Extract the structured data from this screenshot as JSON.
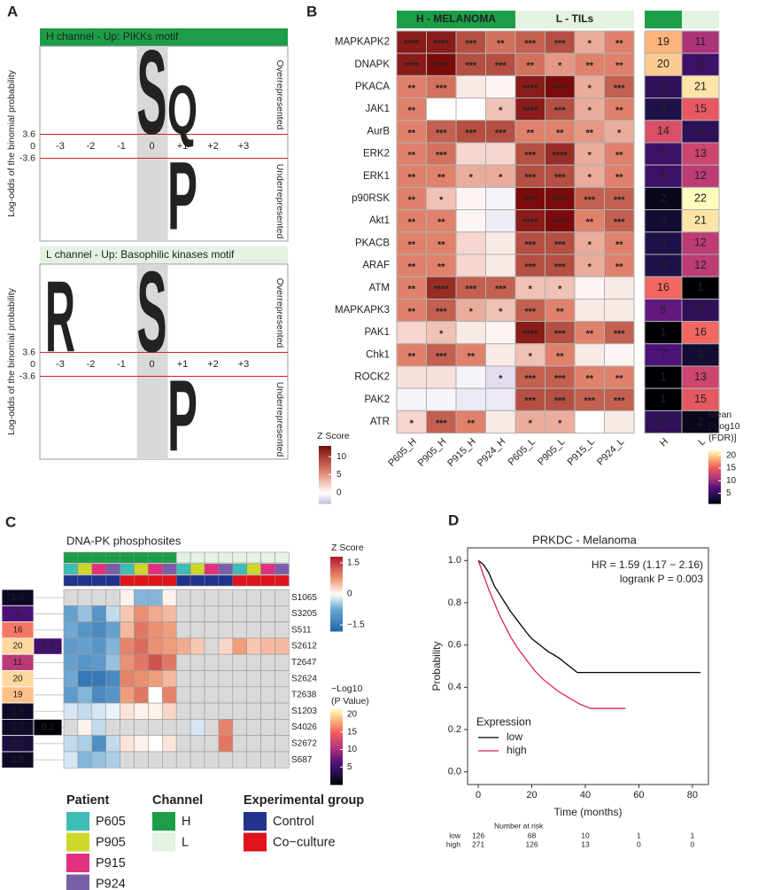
{
  "panel_a": {
    "label": "A",
    "y_label": "Log-odds of the binomial probability",
    "letter_colors": {
      "S": "#4b80b8",
      "Q": "#e8a020",
      "P": "#1f7a40",
      "R": "#13284f"
    },
    "logos": [
      {
        "title": "H channel - Up: PIKKs motif",
        "color": "#1b9e47",
        "text_color": "#ffffff",
        "positions": [
          "-3",
          "-2",
          "-1",
          "0",
          "+1",
          "+2",
          "+3"
        ],
        "yticks": [
          3.6,
          0,
          -3.6
        ],
        "over_label": "Overrepresented",
        "under_label": "Underrepresented",
        "letters_up": [
          null,
          null,
          null,
          {
            "letter": "S",
            "height": 26
          },
          {
            "letter": "Q",
            "height": 15
          },
          null,
          null
        ],
        "letters_down": [
          null,
          null,
          null,
          null,
          {
            "letter": "P",
            "height": 21
          },
          null,
          null
        ]
      },
      {
        "title": "L channel - Up: Basophilic kinases motif",
        "color": "#e3f2e1",
        "text_color": "#000000",
        "positions": [
          "-3",
          "-2",
          "-1",
          "0",
          "+1",
          "+2",
          "+3"
        ],
        "yticks": [
          3.6,
          0,
          -3.6
        ],
        "over_label": "Overrepresented",
        "under_label": "Underrepresented",
        "letters_up": [
          {
            "letter": "R",
            "height": 22
          },
          null,
          null,
          {
            "letter": "S",
            "height": 25
          },
          null,
          null,
          null
        ],
        "letters_down": [
          null,
          null,
          null,
          null,
          {
            "letter": "P",
            "height": 22
          },
          null,
          null
        ]
      }
    ]
  },
  "panel_b": {
    "label": "B",
    "groups": [
      {
        "name": "H - MELANOMA",
        "color": "#1b9e47",
        "text_color": "#ffffff"
      },
      {
        "name": "L - TILs",
        "color": "#e3f2e1",
        "text_color": "#000000"
      }
    ],
    "kinases": [
      "MAPKAPK2",
      "DNAPK",
      "PKACA",
      "JAK1",
      "AurB",
      "ERK2",
      "ERK1",
      "p90RSK",
      "Akt1",
      "PKACB",
      "ARAF",
      "ATM",
      "MAPKAPK3",
      "PAK1",
      "Chk1",
      "ROCK2",
      "PAK2",
      "ATR"
    ],
    "highlight": {
      "row": 1,
      "color": "#2b2a8c"
    },
    "samples": [
      "P605_H",
      "P905_H",
      "P915_H",
      "P924_H",
      "P605_L",
      "P905_L",
      "P915_L",
      "P924_L"
    ],
    "stars": [
      [
        "****",
        "****",
        "***",
        "**",
        "***",
        "***",
        "*",
        "**"
      ],
      [
        "****",
        "****",
        "***",
        "***",
        "**",
        "*",
        "**",
        "**"
      ],
      [
        "**",
        "***",
        null,
        null,
        "****",
        "****",
        "*",
        "***"
      ],
      [
        "**",
        null,
        null,
        "*",
        "****",
        "***",
        "*",
        "**"
      ],
      [
        "**",
        "***",
        "***",
        "***",
        "**",
        "**",
        "**",
        "*"
      ],
      [
        "**",
        "***",
        null,
        null,
        "***",
        "****",
        "*",
        "**"
      ],
      [
        "**",
        "**",
        "*",
        "*",
        "***",
        "***",
        "*",
        "**"
      ],
      [
        "**",
        "*",
        null,
        null,
        "****",
        "****",
        "***",
        "***"
      ],
      [
        "**",
        "**",
        null,
        null,
        "****",
        "****",
        "**",
        "***"
      ],
      [
        "**",
        "**",
        null,
        null,
        "***",
        "***",
        "*",
        "**"
      ],
      [
        "**",
        "**",
        null,
        null,
        "***",
        "***",
        "*",
        "**"
      ],
      [
        "**",
        "****",
        "***",
        "***",
        "*",
        "*",
        null,
        null
      ],
      [
        "**",
        "***",
        "*",
        "*",
        "***",
        "**",
        null,
        null
      ],
      [
        null,
        "*",
        null,
        null,
        "****",
        "***",
        "**",
        "***"
      ],
      [
        "**",
        "***",
        "**",
        null,
        "*",
        "**",
        null,
        null
      ],
      [
        null,
        null,
        null,
        "*",
        "***",
        "***",
        "**",
        "**"
      ],
      [
        null,
        null,
        null,
        null,
        "***",
        "***",
        "***",
        "***"
      ],
      [
        "*",
        "***",
        "**",
        null,
        "*",
        "*",
        null,
        null
      ]
    ],
    "z_scores": [
      [
        12,
        12,
        9,
        7,
        8,
        9,
        4,
        6
      ],
      [
        12,
        13,
        9,
        9,
        7,
        5,
        6,
        6
      ],
      [
        6,
        7,
        1,
        0.5,
        12,
        13,
        4,
        8
      ],
      [
        6,
        0,
        0,
        3,
        12,
        9,
        4,
        6
      ],
      [
        6,
        8,
        9,
        9,
        6,
        6,
        5,
        4
      ],
      [
        6,
        7,
        2,
        2,
        9,
        11,
        4,
        6
      ],
      [
        6,
        6,
        4,
        4,
        9,
        9,
        4,
        6
      ],
      [
        6,
        3,
        0.5,
        -0.5,
        13,
        13,
        8,
        8
      ],
      [
        6,
        6,
        0.5,
        -0.8,
        12,
        13,
        6,
        8
      ],
      [
        6,
        6,
        2,
        1,
        9,
        9,
        4,
        6
      ],
      [
        6,
        6,
        2,
        1,
        9,
        9,
        4,
        6
      ],
      [
        6,
        11,
        8,
        8,
        3,
        3,
        0.5,
        1
      ],
      [
        6,
        8,
        4,
        3,
        8,
        6,
        1,
        1
      ],
      [
        2,
        3,
        1,
        0.5,
        12,
        9,
        6,
        8
      ],
      [
        6,
        8,
        6,
        1,
        3,
        6,
        1,
        0.5
      ],
      [
        1.5,
        1.5,
        -0.5,
        -1.5,
        8,
        8,
        6,
        6
      ],
      [
        -0.5,
        -0.5,
        -1,
        -1,
        9,
        9,
        8,
        8
      ],
      [
        2,
        8,
        6,
        1,
        4,
        4,
        0,
        1
      ]
    ],
    "z_legend": {
      "title": "Z Score",
      "lim": [
        -3,
        13
      ],
      "ticks": [
        0,
        5,
        10
      ]
    },
    "fdr": {
      "columns": [
        "H",
        "L"
      ],
      "values": [
        [
          19,
          11
        ],
        [
          20,
          6
        ],
        [
          5,
          21
        ],
        [
          4,
          15
        ],
        [
          14,
          5
        ],
        [
          6,
          13
        ],
        [
          6,
          12
        ],
        [
          2,
          22
        ],
        [
          3,
          21
        ],
        [
          4,
          12
        ],
        [
          4,
          12
        ],
        [
          16,
          1
        ],
        [
          8,
          5
        ],
        [
          1,
          16
        ],
        [
          7,
          3
        ],
        [
          1,
          13
        ],
        [
          1,
          15
        ],
        [
          5,
          2
        ]
      ],
      "legend": {
        "title": [
          "Mean",
          "[-Log10",
          "(FDR)]"
        ],
        "lim": [
          1,
          22
        ],
        "ticks": [
          5,
          10,
          15,
          20
        ]
      }
    }
  },
  "panel_c": {
    "label": "C",
    "title": "DNA-PK phosphosites",
    "sites": [
      "S1065",
      "S3205",
      "S511",
      "S2612",
      "T2647",
      "S2624",
      "T2638",
      "S1203",
      "S4026",
      "S2672",
      "S687"
    ],
    "pvalues": [
      [
        1.4,
        null
      ],
      [
        6,
        null
      ],
      [
        16,
        null
      ],
      [
        20,
        5.4
      ],
      [
        11,
        null
      ],
      [
        20,
        null
      ],
      [
        19,
        null
      ],
      [
        1.6,
        null
      ],
      [
        1.7,
        0.2
      ],
      [
        2.5,
        null
      ],
      [
        1.5,
        null
      ]
    ],
    "columns": [
      {
        "patient": 0,
        "channel": 0,
        "group": 0
      },
      {
        "patient": 1,
        "channel": 0,
        "group": 0
      },
      {
        "patient": 2,
        "channel": 0,
        "group": 0
      },
      {
        "patient": 3,
        "channel": 0,
        "group": 0
      },
      {
        "patient": 0,
        "channel": 0,
        "group": 1
      },
      {
        "patient": 1,
        "channel": 0,
        "group": 1
      },
      {
        "patient": 2,
        "channel": 0,
        "group": 1
      },
      {
        "patient": 3,
        "channel": 0,
        "group": 1
      },
      {
        "patient": 0,
        "channel": 1,
        "group": 0
      },
      {
        "patient": 1,
        "channel": 1,
        "group": 0
      },
      {
        "patient": 2,
        "channel": 1,
        "group": 0
      },
      {
        "patient": 3,
        "channel": 1,
        "group": 0
      },
      {
        "patient": 0,
        "channel": 1,
        "group": 1
      },
      {
        "patient": 1,
        "channel": 1,
        "group": 1
      },
      {
        "patient": 2,
        "channel": 1,
        "group": 1
      },
      {
        "patient": 3,
        "channel": 1,
        "group": 1
      }
    ],
    "z_scores": [
      [
        null,
        null,
        null,
        null,
        0.1,
        -0.6,
        -0.6,
        0.1,
        null,
        null,
        null,
        null,
        null,
        null,
        null,
        null
      ],
      [
        -0.8,
        -0.5,
        -1.0,
        -0.3,
        0.4,
        0.8,
        0.6,
        0.5,
        null,
        null,
        null,
        null,
        null,
        null,
        null,
        null
      ],
      [
        -0.7,
        -1.0,
        -1.2,
        -0.8,
        0.5,
        1.0,
        0.8,
        0.7,
        null,
        null,
        null,
        null,
        null,
        null,
        null,
        null
      ],
      [
        -0.9,
        -0.8,
        -1.0,
        -0.6,
        0.9,
        1.1,
        0.8,
        0.7,
        0.6,
        0.4,
        null,
        0.3,
        0.7,
        0.4,
        0.5,
        0.5
      ],
      [
        -0.8,
        -1.0,
        -0.9,
        -0.5,
        0.8,
        1.0,
        1.3,
        1.0,
        null,
        null,
        null,
        null,
        null,
        null,
        null,
        null
      ],
      [
        -0.7,
        -1.5,
        -1.5,
        -1.2,
        0.9,
        0.8,
        0.7,
        0.5,
        null,
        null,
        null,
        null,
        null,
        null,
        null,
        null
      ],
      [
        -0.9,
        -0.6,
        -1.2,
        -1.0,
        0.7,
        1.0,
        0.0,
        0.9,
        null,
        null,
        null,
        null,
        null,
        null,
        null,
        null
      ],
      [
        -0.2,
        -0.3,
        -0.2,
        -0.1,
        0.2,
        0.1,
        0.1,
        0.3,
        null,
        null,
        null,
        null,
        null,
        null,
        null,
        null
      ],
      [
        null,
        0.1,
        -0.3,
        null,
        null,
        null,
        null,
        null,
        null,
        -0.2,
        null,
        0.9,
        null,
        null,
        null,
        null
      ],
      [
        -0.3,
        -0.4,
        -1.1,
        -0.3,
        0.2,
        0.1,
        0.0,
        0.2,
        null,
        null,
        null,
        1.0,
        null,
        null,
        null,
        null
      ],
      [
        -0.2,
        -0.6,
        -0.5,
        -0.4,
        null,
        null,
        null,
        null,
        null,
        null,
        null,
        null,
        null,
        null,
        null,
        null
      ]
    ],
    "z_legend": {
      "title": "Z Score",
      "lim": [
        -1.8,
        1.8
      ],
      "ticks": [
        1.5,
        0,
        {
          "value": -1.5,
          "label": "−1.5"
        }
      ]
    },
    "p_legend": {
      "title": [
        "−Log10",
        "(P Value)"
      ],
      "lim": [
        0,
        21.5
      ],
      "ticks": [
        20,
        15,
        10,
        5
      ]
    },
    "patient": {
      "title": "Patient",
      "items": [
        {
          "name": "P605",
          "color": "#3dbdb5"
        },
        {
          "name": "P905",
          "color": "#cfd82a"
        },
        {
          "name": "P915",
          "color": "#e2307f"
        },
        {
          "name": "P924",
          "color": "#7b5ea8"
        }
      ]
    },
    "channel": {
      "title": "Channel",
      "items": [
        {
          "name": "H",
          "color": "#1b9e47"
        },
        {
          "name": "L",
          "color": "#e3f2e1"
        }
      ]
    },
    "group": {
      "title": "Experimental group",
      "items": [
        {
          "name": "Control",
          "color": "#21338c"
        },
        {
          "name": "Co−culture",
          "color": "#e0141b"
        }
      ]
    }
  },
  "panel_d": {
    "type": "line",
    "label": "D",
    "title": "PRKDC - Melanoma",
    "annotations": [
      "HR = 1.59 (1.17 − 2.16)",
      "logrank P = 0.003"
    ],
    "x_label": "Time (months)",
    "y_label": "Probability",
    "xlim": [
      -4,
      86
    ],
    "ylim": [
      -0.06,
      1.06
    ],
    "xticks": [
      0,
      20,
      40,
      60,
      80
    ],
    "yticks": [
      {
        "value": 0,
        "label": "0.0"
      },
      0.2,
      0.4,
      0.6,
      0.8,
      {
        "value": 1,
        "label": "1.0"
      }
    ],
    "legend_title": "Expression",
    "series": [
      {
        "name": "low",
        "color": "#000000",
        "x": [
          0,
          2,
          4,
          6,
          8,
          10,
          12,
          15,
          18,
          20,
          23,
          26,
          30,
          33,
          37,
          83
        ],
        "values": [
          1,
          0.98,
          0.94,
          0.88,
          0.84,
          0.8,
          0.76,
          0.71,
          0.66,
          0.63,
          0.6,
          0.57,
          0.54,
          0.51,
          0.47,
          0.47
        ]
      },
      {
        "name": "high",
        "color": "#e0245a",
        "x": [
          0,
          2,
          4,
          6,
          8,
          10,
          12,
          15,
          18,
          21,
          24,
          27,
          30,
          34,
          38,
          42,
          55
        ],
        "values": [
          1,
          0.93,
          0.86,
          0.8,
          0.74,
          0.69,
          0.64,
          0.58,
          0.53,
          0.48,
          0.44,
          0.41,
          0.38,
          0.35,
          0.32,
          0.3,
          0.3
        ]
      }
    ],
    "risk_table": {
      "title": "Number at risk",
      "rows": [
        {
          "name": "low",
          "color": "#000000",
          "values": [
            126,
            68,
            10,
            1,
            1
          ]
        },
        {
          "name": "high",
          "color": "#e0245a",
          "values": [
            271,
            126,
            13,
            0,
            0
          ]
        }
      ]
    }
  }
}
